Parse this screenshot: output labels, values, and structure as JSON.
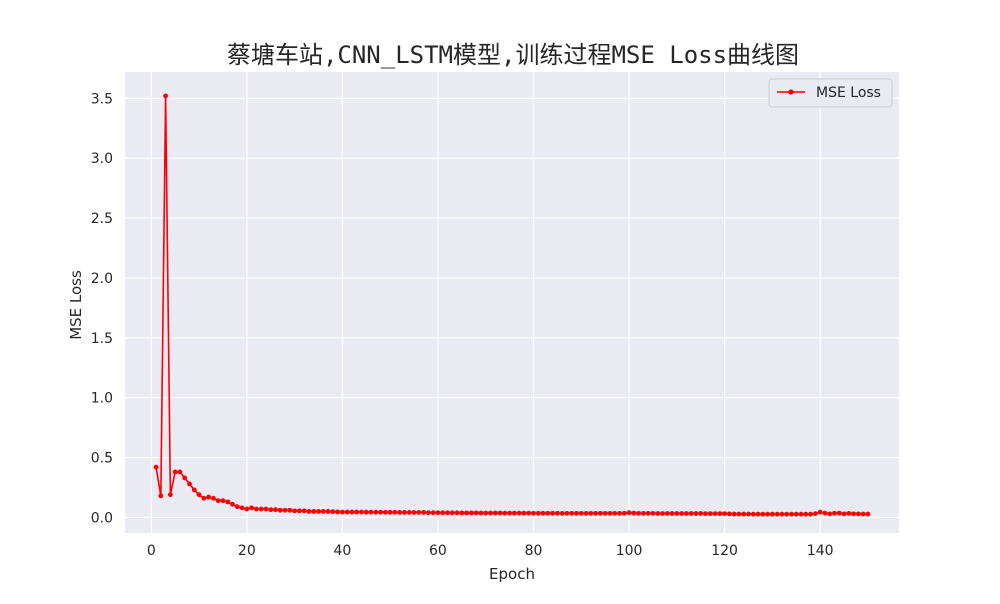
{
  "chart_data": {
    "type": "line",
    "title": "蔡塘车站,CNN_LSTM模型,训练过程MSE Loss曲线图",
    "xlabel": "Epoch",
    "ylabel": "MSE Loss",
    "xlim": [
      -5.5,
      156.5
    ],
    "ylim": [
      -0.13,
      3.72
    ],
    "xticks": [
      0,
      20,
      40,
      60,
      80,
      100,
      120,
      140
    ],
    "yticks": [
      0.0,
      0.5,
      1.0,
      1.5,
      2.0,
      2.5,
      3.0,
      3.5
    ],
    "xtick_labels": [
      "0",
      "20",
      "40",
      "60",
      "80",
      "100",
      "120",
      "140"
    ],
    "ytick_labels": [
      "0.0",
      "0.5",
      "1.0",
      "1.5",
      "2.0",
      "2.5",
      "3.0",
      "3.5"
    ],
    "grid": true,
    "legend_position": "top-right",
    "colors": {
      "background": "#eaeaf2",
      "grid": "#ffffff",
      "series": "#ff0000"
    },
    "series": [
      {
        "name": "MSE Loss",
        "x": [
          1,
          2,
          3,
          4,
          5,
          6,
          7,
          8,
          9,
          10,
          11,
          12,
          13,
          14,
          15,
          16,
          17,
          18,
          19,
          20,
          21,
          22,
          23,
          24,
          25,
          26,
          27,
          28,
          29,
          30,
          31,
          32,
          33,
          34,
          35,
          36,
          37,
          38,
          39,
          40,
          41,
          42,
          43,
          44,
          45,
          46,
          47,
          48,
          49,
          50,
          51,
          52,
          53,
          54,
          55,
          56,
          57,
          58,
          59,
          60,
          61,
          62,
          63,
          64,
          65,
          66,
          67,
          68,
          69,
          70,
          71,
          72,
          73,
          74,
          75,
          76,
          77,
          78,
          79,
          80,
          81,
          82,
          83,
          84,
          85,
          86,
          87,
          88,
          89,
          90,
          91,
          92,
          93,
          94,
          95,
          96,
          97,
          98,
          99,
          100,
          101,
          102,
          103,
          104,
          105,
          106,
          107,
          108,
          109,
          110,
          111,
          112,
          113,
          114,
          115,
          116,
          117,
          118,
          119,
          120,
          121,
          122,
          123,
          124,
          125,
          126,
          127,
          128,
          129,
          130,
          131,
          132,
          133,
          134,
          135,
          136,
          137,
          138,
          139,
          140,
          141,
          142,
          143,
          144,
          145,
          146,
          147,
          148,
          149,
          150
        ],
        "values": [
          0.42,
          0.18,
          3.52,
          0.19,
          0.38,
          0.38,
          0.33,
          0.28,
          0.23,
          0.19,
          0.16,
          0.17,
          0.16,
          0.14,
          0.14,
          0.13,
          0.11,
          0.09,
          0.08,
          0.07,
          0.08,
          0.07,
          0.07,
          0.07,
          0.065,
          0.065,
          0.06,
          0.06,
          0.06,
          0.055,
          0.055,
          0.055,
          0.05,
          0.05,
          0.05,
          0.05,
          0.05,
          0.048,
          0.046,
          0.045,
          0.045,
          0.045,
          0.045,
          0.045,
          0.044,
          0.044,
          0.044,
          0.044,
          0.043,
          0.043,
          0.043,
          0.042,
          0.042,
          0.042,
          0.042,
          0.042,
          0.042,
          0.04,
          0.04,
          0.04,
          0.04,
          0.039,
          0.039,
          0.039,
          0.038,
          0.038,
          0.038,
          0.038,
          0.037,
          0.037,
          0.037,
          0.037,
          0.037,
          0.036,
          0.036,
          0.036,
          0.036,
          0.036,
          0.036,
          0.035,
          0.035,
          0.035,
          0.035,
          0.035,
          0.035,
          0.034,
          0.034,
          0.034,
          0.034,
          0.034,
          0.034,
          0.034,
          0.034,
          0.034,
          0.034,
          0.034,
          0.034,
          0.034,
          0.035,
          0.04,
          0.036,
          0.034,
          0.034,
          0.034,
          0.034,
          0.033,
          0.033,
          0.033,
          0.033,
          0.033,
          0.033,
          0.033,
          0.033,
          0.033,
          0.033,
          0.032,
          0.032,
          0.032,
          0.032,
          0.032,
          0.03,
          0.028,
          0.028,
          0.028,
          0.028,
          0.027,
          0.027,
          0.027,
          0.027,
          0.027,
          0.027,
          0.027,
          0.027,
          0.027,
          0.027,
          0.027,
          0.027,
          0.027,
          0.032,
          0.045,
          0.036,
          0.03,
          0.035,
          0.036,
          0.03,
          0.034,
          0.03,
          0.03,
          0.028,
          0.028
        ]
      }
    ]
  }
}
